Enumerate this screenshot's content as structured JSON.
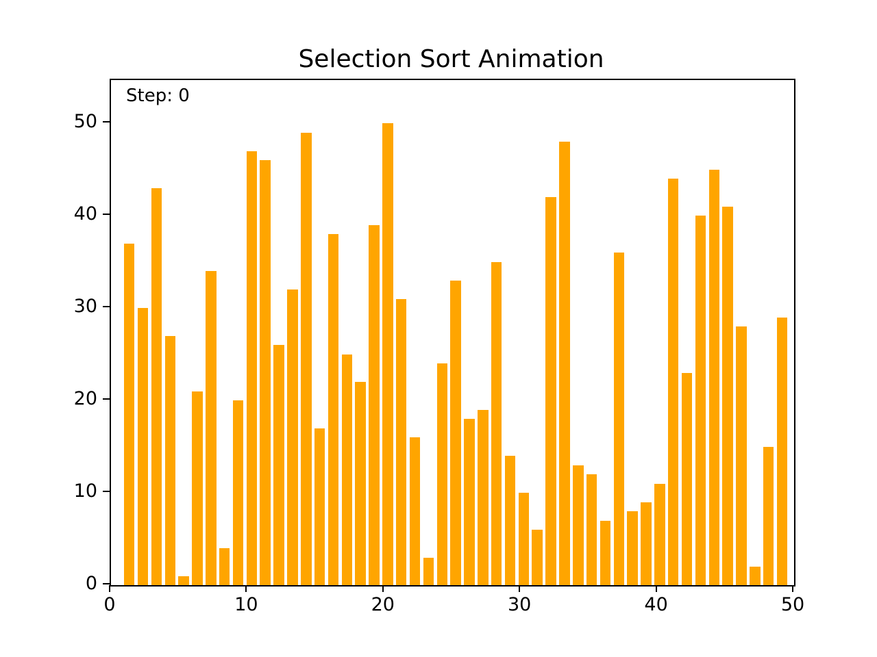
{
  "chart_data": {
    "type": "bar",
    "title": "Selection Sort Animation",
    "step_label": "Step: 0",
    "values": [
      37,
      30,
      43,
      27,
      1,
      21,
      34,
      4,
      20,
      47,
      46,
      26,
      32,
      49,
      17,
      38,
      25,
      22,
      39,
      50,
      31,
      16,
      3,
      24,
      33,
      18,
      19,
      35,
      14,
      10,
      6,
      42,
      48,
      13,
      12,
      7,
      36,
      8,
      9,
      11,
      44,
      23,
      40,
      45,
      41,
      28,
      2,
      15,
      29
    ],
    "x_tick_labels": [
      "0",
      "10",
      "20",
      "30",
      "40",
      "50"
    ],
    "x_tick_values": [
      0,
      10,
      20,
      30,
      40,
      50
    ],
    "y_tick_labels": [
      "0",
      "10",
      "20",
      "30",
      "40",
      "50"
    ],
    "y_tick_values": [
      0,
      10,
      20,
      30,
      40,
      50
    ],
    "xlim": [
      0,
      50
    ],
    "ylim": [
      0,
      54.7
    ],
    "xlabel": "",
    "ylabel": "",
    "bar_color": "#FFA500",
    "text_color": "#000000",
    "grid": false,
    "legend_position": "none"
  }
}
